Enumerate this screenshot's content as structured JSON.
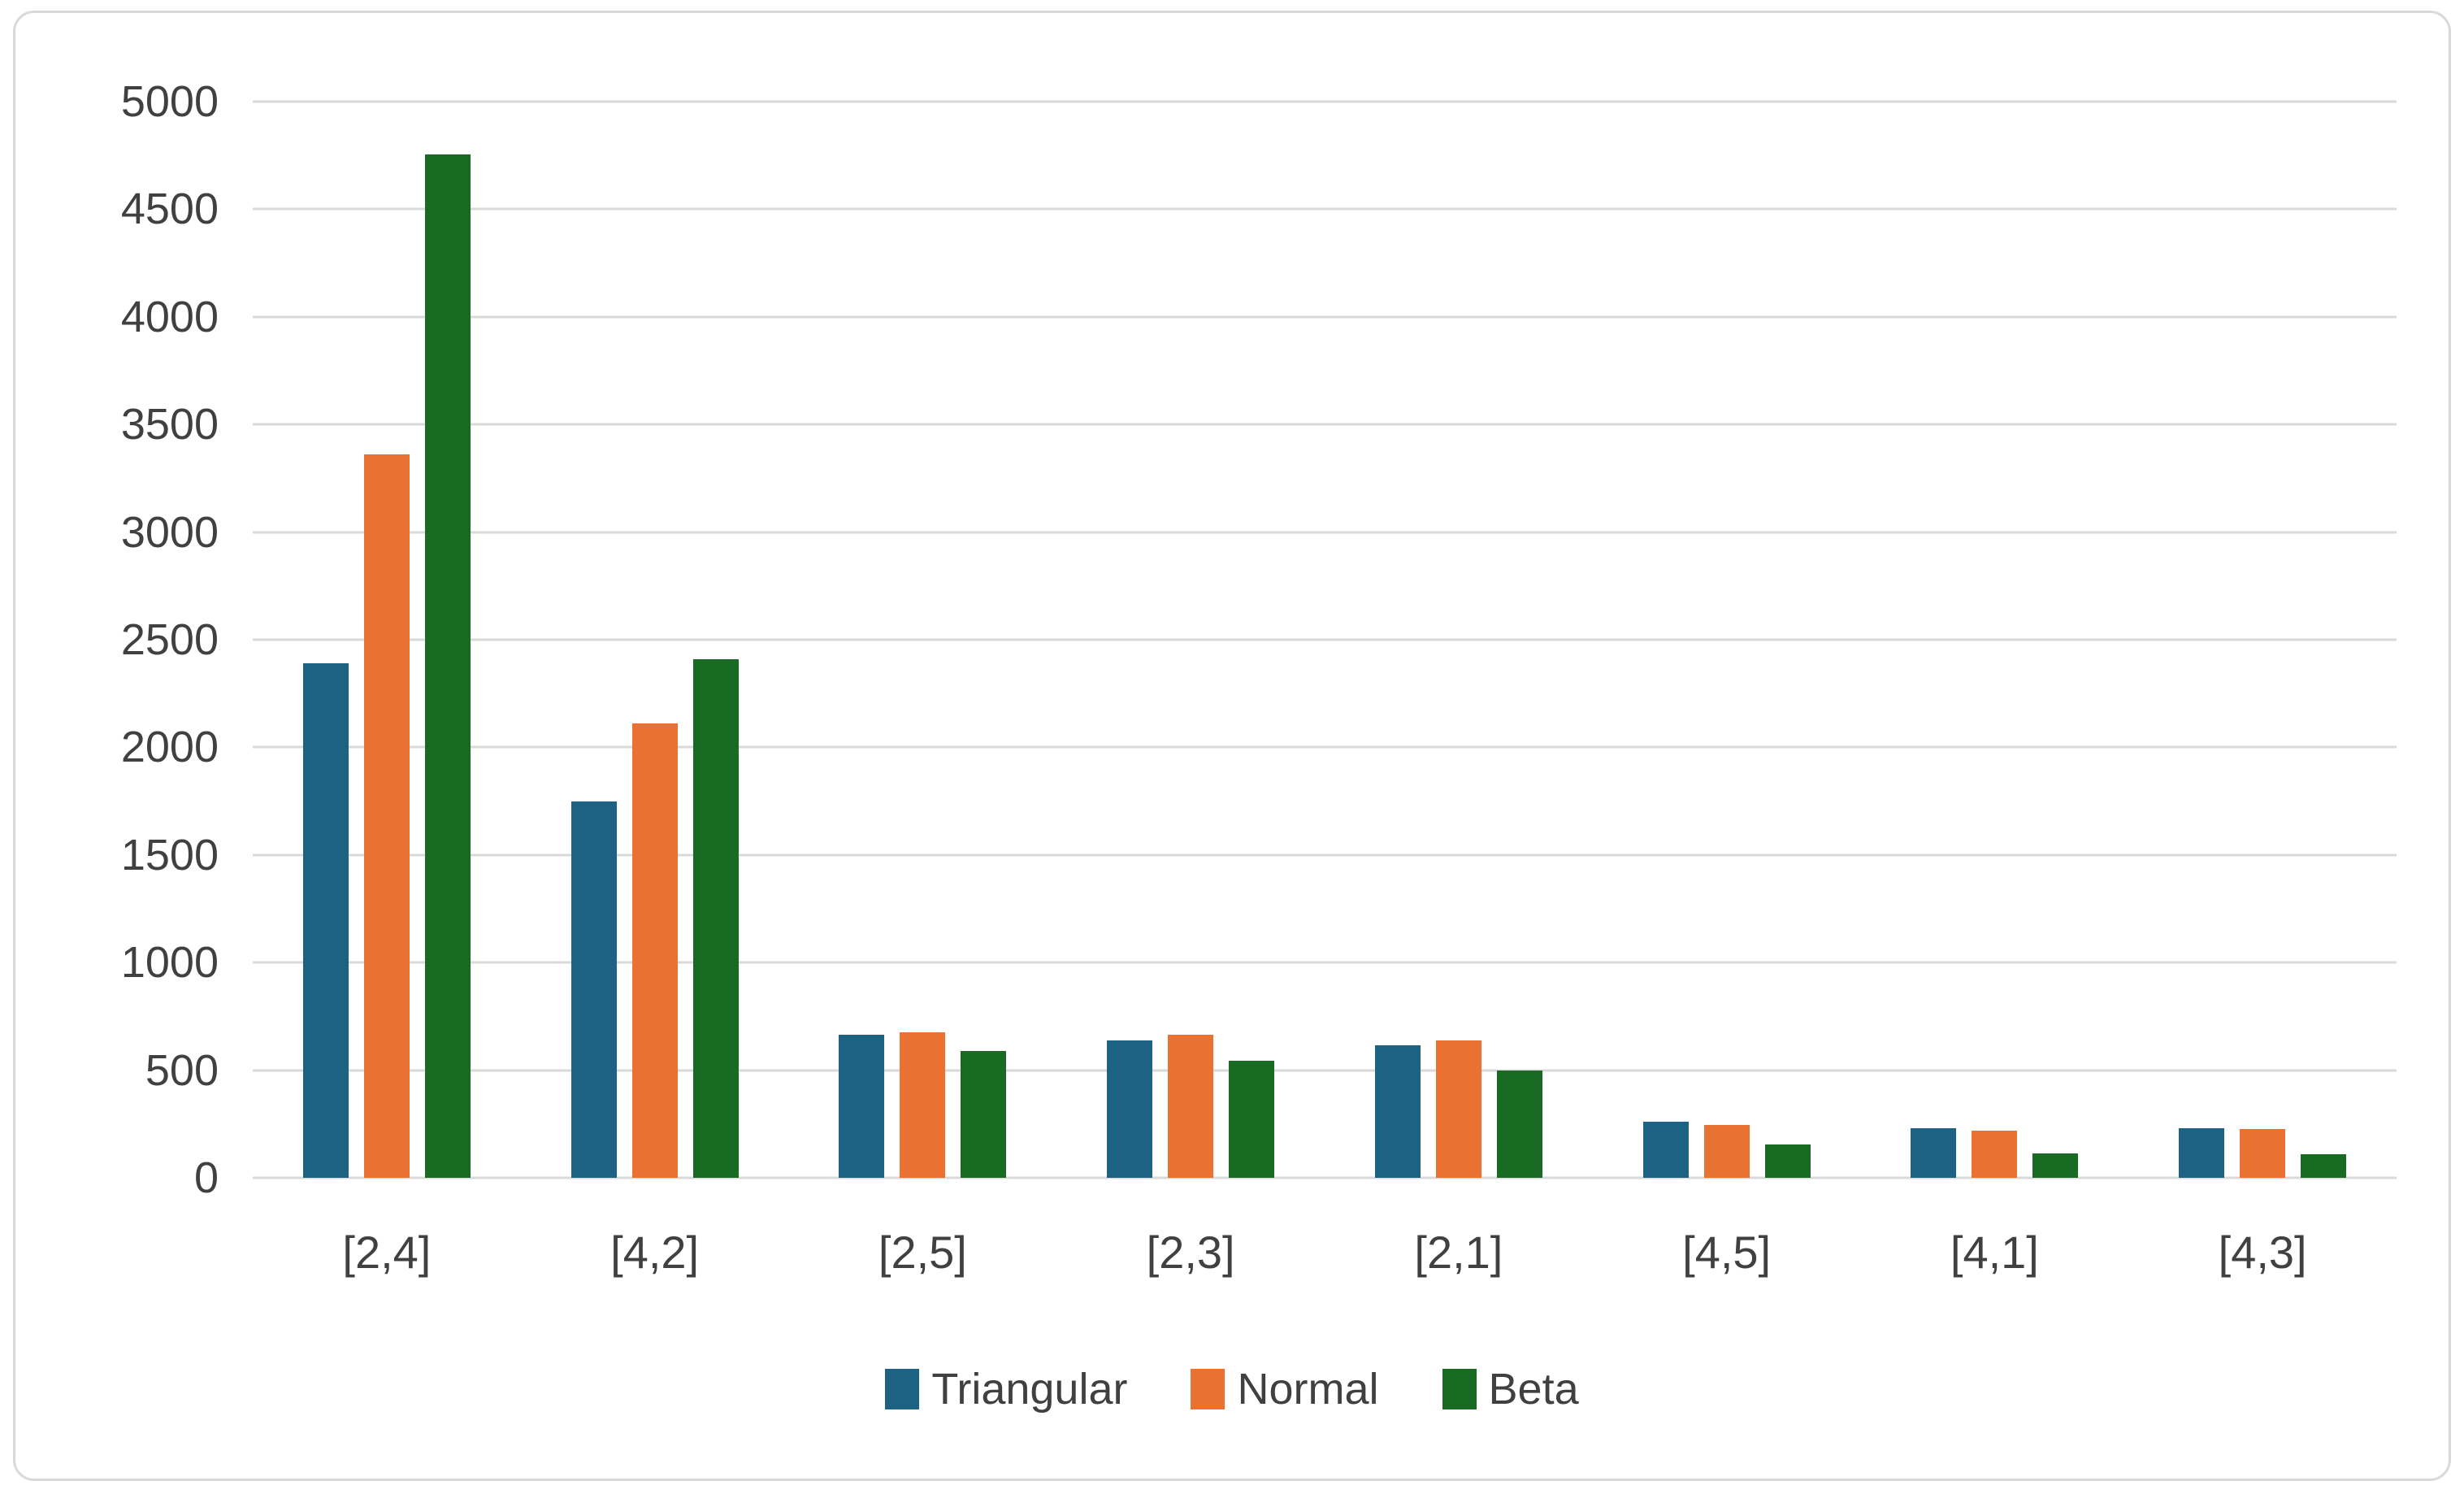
{
  "chart_data": {
    "type": "bar",
    "title": "",
    "xlabel": "",
    "ylabel": "",
    "categories": [
      "[2,4]",
      "[4,2]",
      "[2,5]",
      "[2,3]",
      "[2,1]",
      "[4,5]",
      "[4,1]",
      "[4,3]"
    ],
    "series": [
      {
        "name": "Triangular",
        "color": "#1D6183",
        "values": [
          2390,
          1750,
          665,
          640,
          615,
          260,
          230,
          230
        ]
      },
      {
        "name": "Normal",
        "color": "#E97132",
        "values": [
          3360,
          2110,
          675,
          665,
          640,
          245,
          220,
          225
        ]
      },
      {
        "name": "Beta",
        "color": "#196B24",
        "values": [
          4755,
          2410,
          590,
          545,
          500,
          155,
          115,
          110
        ]
      }
    ],
    "ylim": [
      0,
      5000
    ],
    "y_ticks": [
      0,
      500,
      1000,
      1500,
      2000,
      2500,
      3000,
      3500,
      4000,
      4500,
      5000
    ],
    "grid": true,
    "legend_position": "bottom"
  },
  "colors": {
    "gridline": "#D9D9D9",
    "axis_text": "#404040",
    "chart_border": "#D9D9D9",
    "background": "#FFFFFF"
  }
}
